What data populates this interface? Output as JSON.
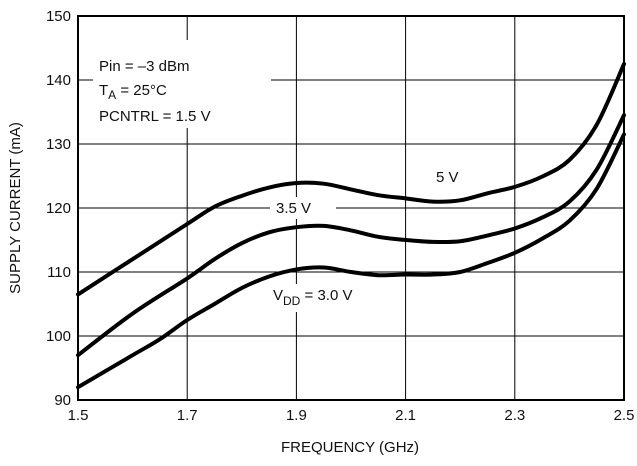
{
  "chart_data": {
    "type": "line",
    "title": "",
    "xlabel": "FREQUENCY (GHz)",
    "ylabel": "SUPPLY CURRENT (mA)",
    "xlim": [
      1.5,
      2.5
    ],
    "ylim": [
      90,
      150
    ],
    "xticks": [
      "1.5",
      "1.7",
      "1.9",
      "2.1",
      "2.3",
      "2.5"
    ],
    "yticks": [
      "90",
      "100",
      "110",
      "120",
      "130",
      "140",
      "150"
    ],
    "grid": true,
    "annotations": {
      "pin": "Pin = –3 dBm",
      "ta_main": "T",
      "ta_sub": "A",
      "ta_rest": " = 25°C",
      "pcntrl": "PCNTRL = 1.5 V"
    },
    "series": [
      {
        "name": "5 V",
        "x": [
          1.5,
          1.6,
          1.7,
          1.75,
          1.8,
          1.85,
          1.9,
          1.95,
          2.0,
          2.05,
          2.1,
          2.15,
          2.2,
          2.25,
          2.3,
          2.35,
          2.4,
          2.45,
          2.5
        ],
        "y": [
          106.5,
          112.0,
          117.5,
          120.2,
          121.9,
          123.2,
          123.9,
          123.8,
          122.9,
          122.0,
          121.5,
          121.0,
          121.2,
          122.3,
          123.3,
          124.9,
          127.5,
          133.0,
          142.5
        ]
      },
      {
        "name": "3.5 V",
        "x": [
          1.5,
          1.6,
          1.7,
          1.75,
          1.8,
          1.85,
          1.9,
          1.95,
          2.0,
          2.05,
          2.1,
          2.15,
          2.2,
          2.25,
          2.3,
          2.35,
          2.4,
          2.45,
          2.5
        ],
        "y": [
          97.0,
          103.5,
          109.0,
          112.0,
          114.5,
          116.2,
          117.0,
          117.2,
          116.5,
          115.5,
          115.0,
          114.7,
          114.8,
          115.7,
          116.8,
          118.5,
          121.0,
          126.0,
          134.5
        ]
      },
      {
        "name": "V",
        "name_sub": "DD",
        "name_rest": " = 3.0 V",
        "x": [
          1.5,
          1.6,
          1.65,
          1.7,
          1.75,
          1.8,
          1.85,
          1.9,
          1.95,
          2.0,
          2.05,
          2.1,
          2.15,
          2.2,
          2.25,
          2.3,
          2.35,
          2.4,
          2.45,
          2.5
        ],
        "y": [
          92.0,
          97.0,
          99.5,
          102.5,
          105.0,
          107.5,
          109.3,
          110.4,
          110.7,
          110.0,
          109.5,
          109.6,
          109.6,
          110.0,
          111.4,
          113.0,
          115.2,
          118.0,
          123.0,
          131.5
        ]
      }
    ]
  }
}
